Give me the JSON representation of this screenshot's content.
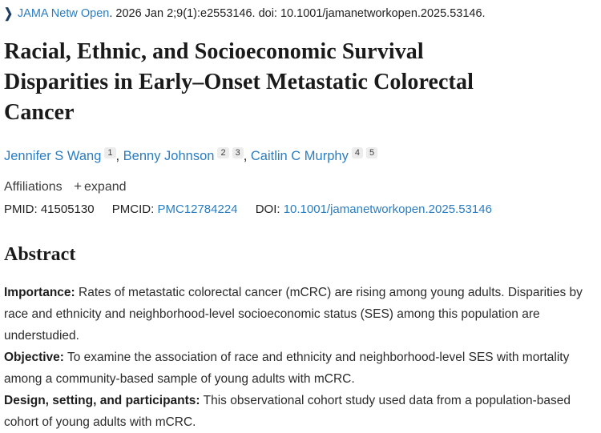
{
  "citation": {
    "journal_link": "JAMA Netw Open",
    "rest": ". 2026 Jan 2;9(1):e2553146. doi: 10.1001/jamanetworkopen.2025.53146."
  },
  "title": {
    "full": "Racial, Ethnic, and Socioeconomic Survival Disparities in Early–Onset Metastatic Colorectal Cancer",
    "lines": [
      "Racial, Ethnic, and Socioeconomic Survival",
      "Disparities in Early–Onset Metastatic Colorectal",
      "Cancer"
    ]
  },
  "authors": [
    {
      "name": "Jennifer S Wang",
      "sups": [
        "1"
      ]
    },
    {
      "name": "Benny Johnson",
      "sups": [
        "2",
        "3"
      ]
    },
    {
      "name": "Caitlin C Murphy",
      "sups": [
        "4",
        "5"
      ]
    }
  ],
  "author_separator": ", ",
  "affiliations": {
    "label": "Affiliations",
    "expand_label": "expand",
    "plus_glyph": "+"
  },
  "ids": {
    "pmid_label": "PMID:",
    "pmid_value": "41505130",
    "pmcid_label": "PMCID:",
    "pmcid_value": "PMC12784224",
    "doi_label": "DOI:",
    "doi_value": "10.1001/jamanetworkopen.2025.53146"
  },
  "abstract": {
    "heading": "Abstract",
    "sections": [
      {
        "label": "Importance:",
        "text": "Rates of metastatic colorectal cancer (mCRC) are rising among young adults. Disparities by race and ethnicity and neighborhood-level socioeconomic status (SES) among this population are understudied."
      },
      {
        "label": "Objective:",
        "text": "To examine the association of race and ethnicity and neighborhood-level SES with mortality among a community-based sample of young adults with mCRC."
      },
      {
        "label": "Design, setting, and participants:",
        "text": "This observational cohort study used data from a population-based cohort of young adults with mCRC."
      }
    ]
  },
  "icons": {
    "journal_chevron": "❯"
  },
  "colors": {
    "link_blue": "#2b7dc2",
    "chevron_navy": "#1e3e63",
    "text_dark": "#212121",
    "sup_bg": "#ececec"
  }
}
